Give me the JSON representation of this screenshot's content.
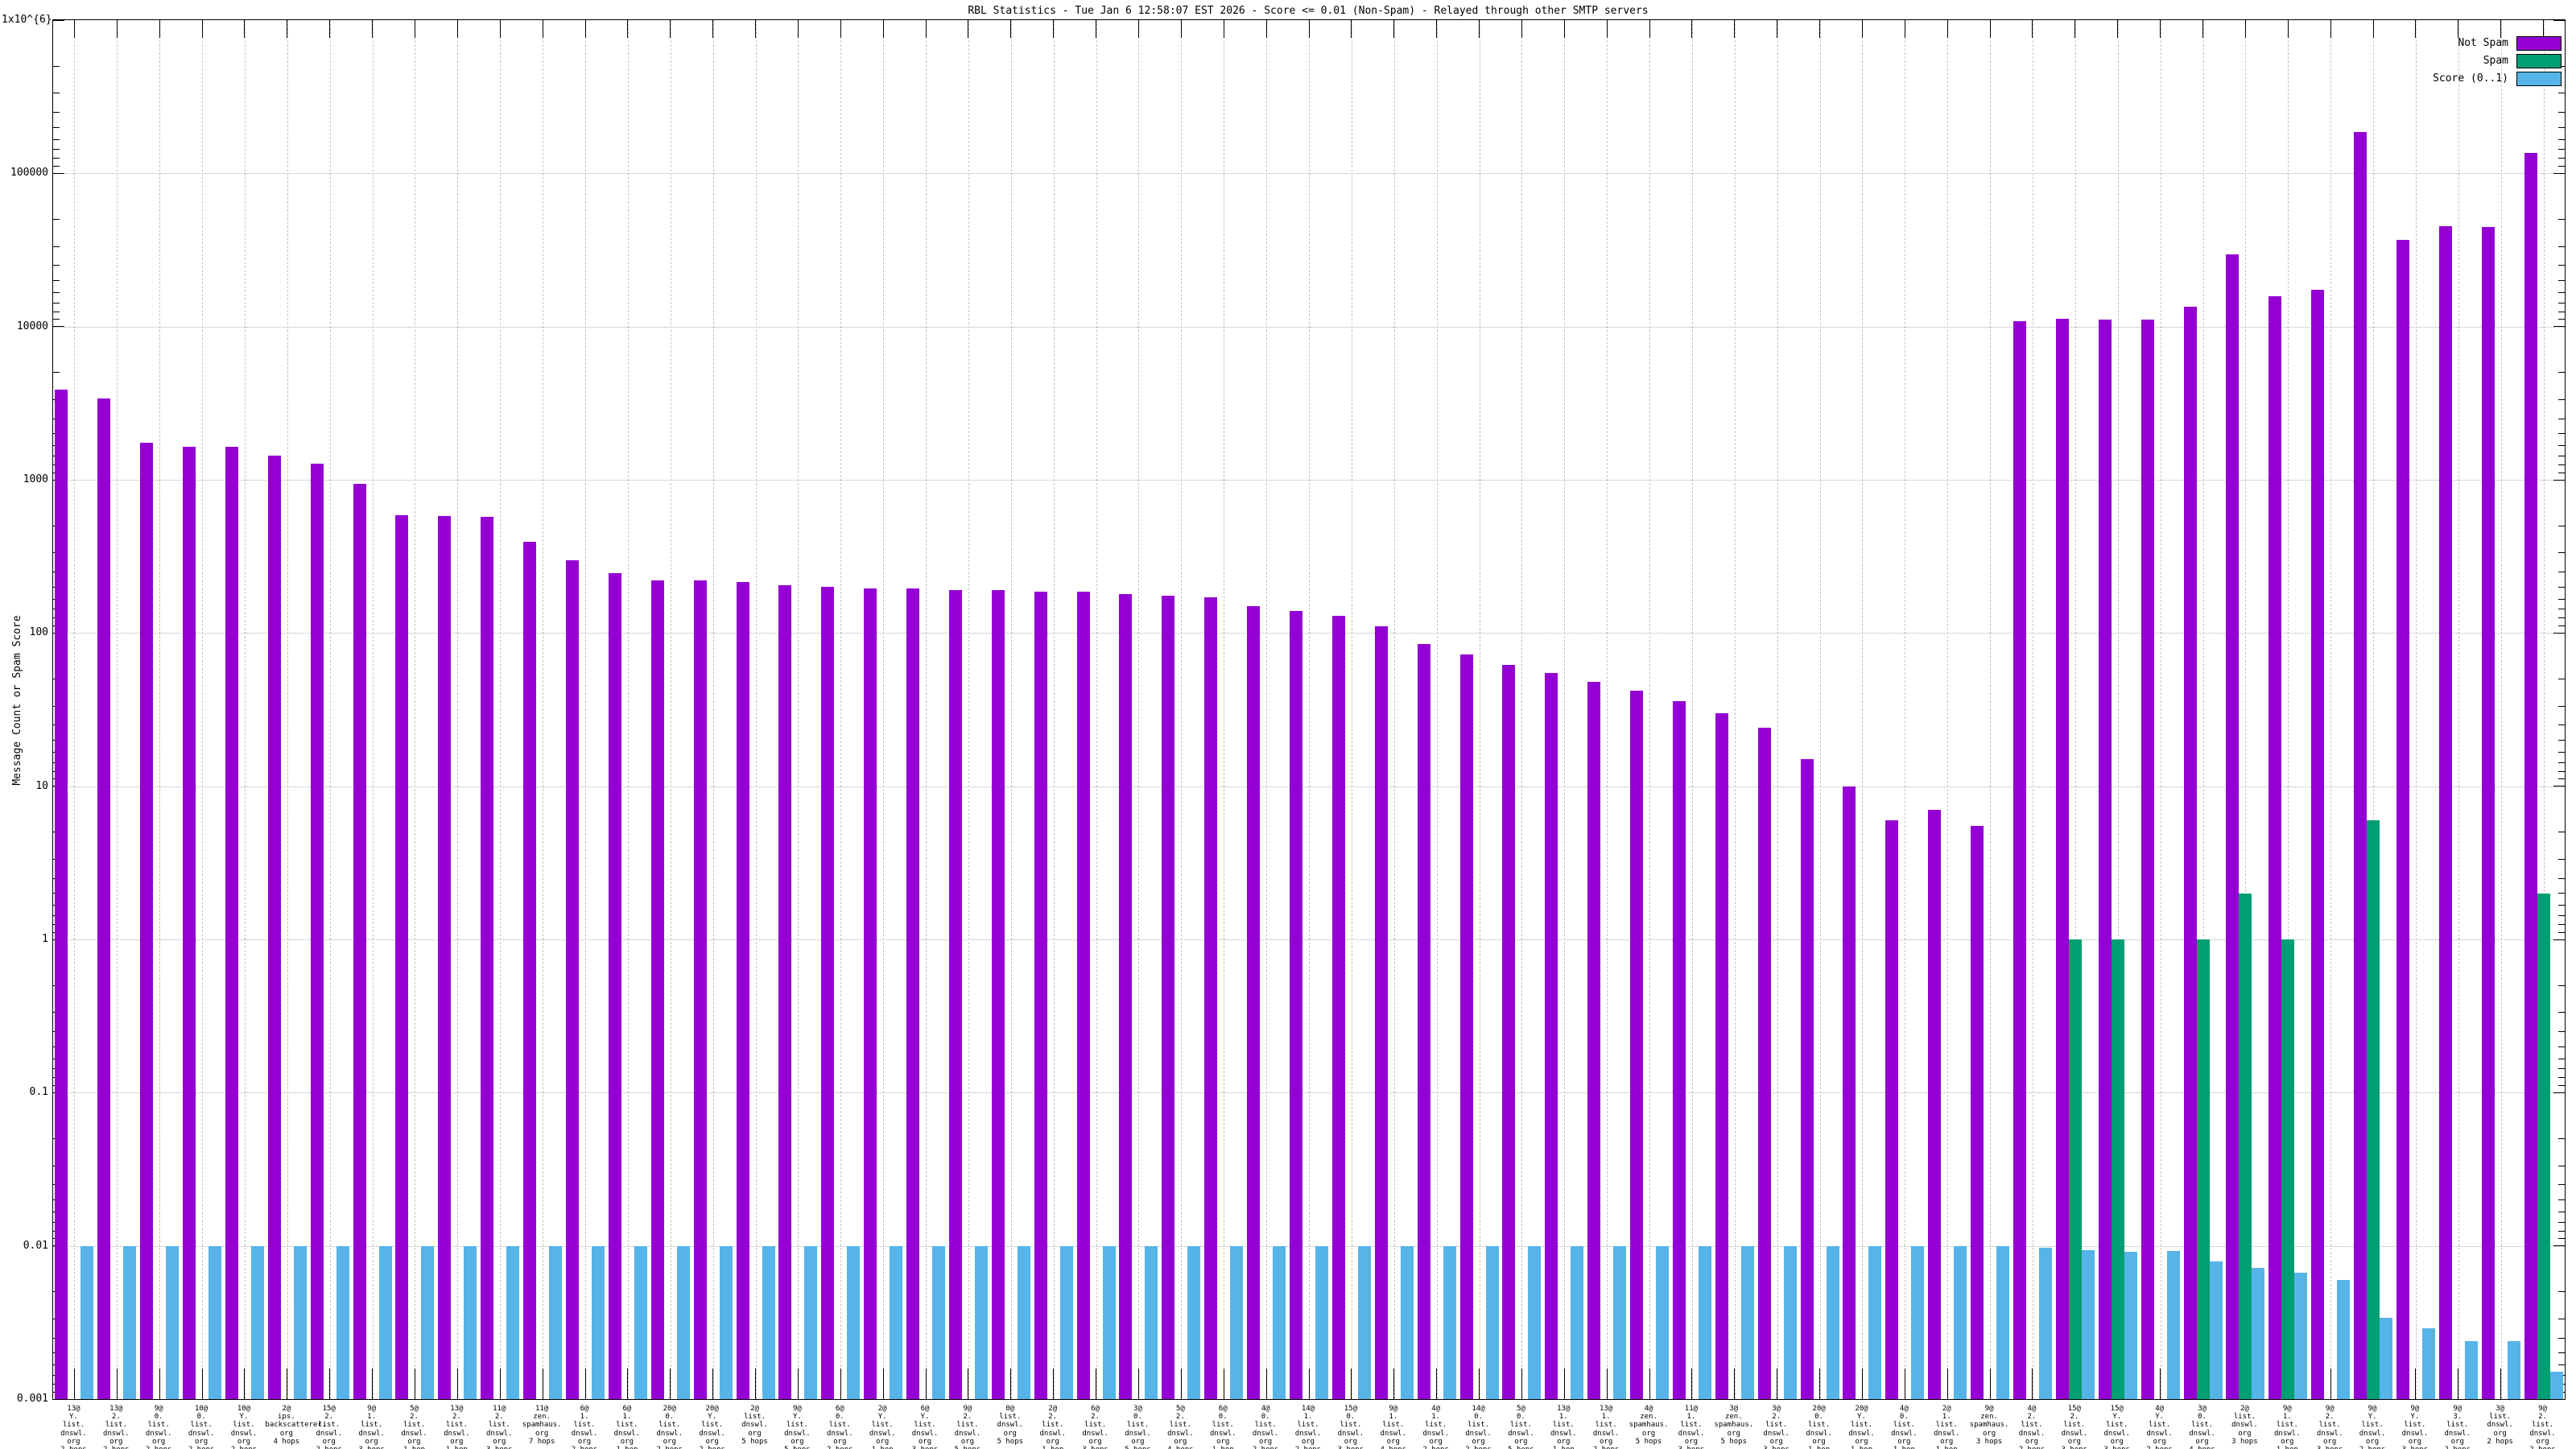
{
  "title": "RBL Statistics - Tue Jan  6 12:58:07 EST 2026 - Score <= 0.01 (Non-Spam) - Relayed through other SMTP servers",
  "legend": [
    {
      "label": "Not Spam",
      "color": "#9400d3"
    },
    {
      "label": "Spam",
      "color": "#009e73"
    },
    {
      "label": "Score (0..1)",
      "color": "#56b4e9"
    }
  ],
  "y_axis": {
    "title": "Message Count or Spam Score",
    "tick_labels": [
      "1x10^{6}",
      "100000",
      "10000",
      "1000",
      "100",
      "10",
      "1",
      "0.1",
      "0.01",
      "0.001"
    ],
    "tick_values": [
      1000000,
      100000,
      10000,
      1000,
      100,
      10,
      1,
      0.1,
      0.01,
      0.001
    ]
  },
  "chart_data": {
    "type": "bar",
    "scale": "log-y",
    "ylim": [
      0.001,
      1000000
    ],
    "grid": true,
    "legend_position": "top-right",
    "series_names": [
      "Not Spam",
      "Spam",
      "Score (0..1)"
    ],
    "bars": [
      {
        "label_lines": [
          "13@",
          "Y.",
          "list.",
          "dnswl.",
          "org",
          "2 hops"
        ],
        "not_spam": 3900,
        "spam": 0,
        "score": 0.01
      },
      {
        "label_lines": [
          "13@",
          "2.",
          "list.",
          "dnswl.",
          "org",
          "2 hops"
        ],
        "not_spam": 3400,
        "spam": 0,
        "score": 0.01
      },
      {
        "label_lines": [
          "9@",
          "0.",
          "list.",
          "dnswl.",
          "org",
          "2 hops"
        ],
        "not_spam": 1750,
        "spam": 0,
        "score": 0.01
      },
      {
        "label_lines": [
          "10@",
          "0.",
          "list.",
          "dnswl.",
          "org",
          "2 hops"
        ],
        "not_spam": 1640,
        "spam": 0,
        "score": 0.01
      },
      {
        "label_lines": [
          "10@",
          "Y.",
          "list.",
          "dnswl.",
          "org",
          "2 hops"
        ],
        "not_spam": 1640,
        "spam": 0,
        "score": 0.01
      },
      {
        "label_lines": [
          "2@",
          "ips.",
          "backscatterer.",
          "org",
          "4 hops"
        ],
        "not_spam": 1440,
        "spam": 0,
        "score": 0.01
      },
      {
        "label_lines": [
          "15@",
          "2.",
          "list.",
          "dnswl.",
          "org",
          "2 hops"
        ],
        "not_spam": 1280,
        "spam": 0,
        "score": 0.01
      },
      {
        "label_lines": [
          "9@",
          "1.",
          "list.",
          "dnswl.",
          "org",
          "3 hops"
        ],
        "not_spam": 945,
        "spam": 0,
        "score": 0.01
      },
      {
        "label_lines": [
          "5@",
          "2.",
          "list.",
          "dnswl.",
          "org",
          "1 hop"
        ],
        "not_spam": 590,
        "spam": 0,
        "score": 0.01
      },
      {
        "label_lines": [
          "13@",
          "2.",
          "list.",
          "dnswl.",
          "org",
          "1 hop"
        ],
        "not_spam": 580,
        "spam": 0,
        "score": 0.01
      },
      {
        "label_lines": [
          "11@",
          "2.",
          "list.",
          "dnswl.",
          "org",
          "3 hops"
        ],
        "not_spam": 570,
        "spam": 0,
        "score": 0.01
      },
      {
        "label_lines": [
          "11@",
          "zen.",
          "spamhaus.",
          "org",
          "7 hops"
        ],
        "not_spam": 395,
        "spam": 0,
        "score": 0.01
      },
      {
        "label_lines": [
          "6@",
          "1.",
          "list.",
          "dnswl.",
          "org",
          "2 hops"
        ],
        "not_spam": 300,
        "spam": 0,
        "score": 0.01
      },
      {
        "label_lines": [
          "6@",
          "1.",
          "list.",
          "dnswl.",
          "org",
          "1 hop"
        ],
        "not_spam": 245,
        "spam": 0,
        "score": 0.01
      },
      {
        "label_lines": [
          "20@",
          "0.",
          "list.",
          "dnswl.",
          "org",
          "2 hops"
        ],
        "not_spam": 220,
        "spam": 0,
        "score": 0.01
      },
      {
        "label_lines": [
          "20@",
          "Y.",
          "list.",
          "dnswl.",
          "org",
          "2 hops"
        ],
        "not_spam": 220,
        "spam": 0,
        "score": 0.01
      },
      {
        "label_lines": [
          "2@",
          "list.",
          "dnswl.",
          "org",
          "5 hops"
        ],
        "not_spam": 215,
        "spam": 0,
        "score": 0.01
      },
      {
        "label_lines": [
          "9@",
          "Y.",
          "list.",
          "dnswl.",
          "org",
          "5 hops"
        ],
        "not_spam": 205,
        "spam": 0,
        "score": 0.01
      },
      {
        "label_lines": [
          "6@",
          "0.",
          "list.",
          "dnswl.",
          "org",
          "2 hops"
        ],
        "not_spam": 200,
        "spam": 0,
        "score": 0.01
      },
      {
        "label_lines": [
          "2@",
          "Y.",
          "list.",
          "dnswl.",
          "org",
          "1 hop"
        ],
        "not_spam": 195,
        "spam": 0,
        "score": 0.01
      },
      {
        "label_lines": [
          "6@",
          "Y.",
          "list.",
          "dnswl.",
          "org",
          "3 hops"
        ],
        "not_spam": 195,
        "spam": 0,
        "score": 0.01
      },
      {
        "label_lines": [
          "9@",
          "2.",
          "list.",
          "dnswl.",
          "org",
          "5 hops"
        ],
        "not_spam": 190,
        "spam": 0,
        "score": 0.01
      },
      {
        "label_lines": [
          "0@",
          "list.",
          "dnswl.",
          "org",
          "5 hops"
        ],
        "not_spam": 190,
        "spam": 0,
        "score": 0.01
      },
      {
        "label_lines": [
          "2@",
          "2.",
          "list.",
          "dnswl.",
          "org",
          "1 hop"
        ],
        "not_spam": 185,
        "spam": 0,
        "score": 0.01
      },
      {
        "label_lines": [
          "6@",
          "2.",
          "list.",
          "dnswl.",
          "org",
          "3 hops"
        ],
        "not_spam": 185,
        "spam": 0,
        "score": 0.01
      },
      {
        "label_lines": [
          "3@",
          "0.",
          "list.",
          "dnswl.",
          "org",
          "5 hops"
        ],
        "not_spam": 180,
        "spam": 0,
        "score": 0.01
      },
      {
        "label_lines": [
          "5@",
          "2.",
          "list.",
          "dnswl.",
          "org",
          "4 hops"
        ],
        "not_spam": 175,
        "spam": 0,
        "score": 0.01
      },
      {
        "label_lines": [
          "6@",
          "0.",
          "list.",
          "dnswl.",
          "org",
          "1 hop"
        ],
        "not_spam": 170,
        "spam": 0,
        "score": 0.01
      },
      {
        "label_lines": [
          "4@",
          "0.",
          "list.",
          "dnswl.",
          "org",
          "2 hops"
        ],
        "not_spam": 150,
        "spam": 0,
        "score": 0.01
      },
      {
        "label_lines": [
          "14@",
          "1.",
          "list.",
          "dnswl.",
          "org",
          "2 hops"
        ],
        "not_spam": 140,
        "spam": 0,
        "score": 0.01
      },
      {
        "label_lines": [
          "15@",
          "0.",
          "list.",
          "dnswl.",
          "org",
          "3 hops"
        ],
        "not_spam": 130,
        "spam": 0,
        "score": 0.01
      },
      {
        "label_lines": [
          "9@",
          "1.",
          "list.",
          "dnswl.",
          "org",
          "4 hops"
        ],
        "not_spam": 110,
        "spam": 0,
        "score": 0.01
      },
      {
        "label_lines": [
          "4@",
          "1.",
          "list.",
          "dnswl.",
          "org",
          "2 hops"
        ],
        "not_spam": 85,
        "spam": 0,
        "score": 0.01
      },
      {
        "label_lines": [
          "14@",
          "0.",
          "list.",
          "dnswl.",
          "org",
          "2 hops"
        ],
        "not_spam": 72,
        "spam": 0,
        "score": 0.01
      },
      {
        "label_lines": [
          "5@",
          "0.",
          "list.",
          "dnswl.",
          "org",
          "5 hops"
        ],
        "not_spam": 62,
        "spam": 0,
        "score": 0.01
      },
      {
        "label_lines": [
          "13@",
          "1.",
          "list.",
          "dnswl.",
          "org",
          "1 hop"
        ],
        "not_spam": 55,
        "spam": 0,
        "score": 0.01
      },
      {
        "label_lines": [
          "13@",
          "1.",
          "list.",
          "dnswl.",
          "org",
          "2 hops"
        ],
        "not_spam": 48,
        "spam": 0,
        "score": 0.01
      },
      {
        "label_lines": [
          "4@",
          "zen.",
          "spamhaus.",
          "org",
          "5 hops"
        ],
        "not_spam": 42,
        "spam": 0,
        "score": 0.01
      },
      {
        "label_lines": [
          "11@",
          "1.",
          "list.",
          "dnswl.",
          "org",
          "3 hops"
        ],
        "not_spam": 36,
        "spam": 0,
        "score": 0.01
      },
      {
        "label_lines": [
          "3@",
          "zen.",
          "spamhaus.",
          "org",
          "5 hops"
        ],
        "not_spam": 30,
        "spam": 0,
        "score": 0.01
      },
      {
        "label_lines": [
          "3@",
          "2.",
          "list.",
          "dnswl.",
          "org",
          "3 hops"
        ],
        "not_spam": 24,
        "spam": 0,
        "score": 0.01
      },
      {
        "label_lines": [
          "20@",
          "0.",
          "list.",
          "dnswl.",
          "org",
          "1 hop"
        ],
        "not_spam": 15,
        "spam": 0,
        "score": 0.01
      },
      {
        "label_lines": [
          "20@",
          "Y.",
          "list.",
          "dnswl.",
          "org",
          "1 hop"
        ],
        "not_spam": 10,
        "spam": 0,
        "score": 0.01
      },
      {
        "label_lines": [
          "4@",
          "0.",
          "list.",
          "dnswl.",
          "org",
          "1 hop"
        ],
        "not_spam": 6,
        "spam": 0,
        "score": 0.01
      },
      {
        "label_lines": [
          "2@",
          "1.",
          "list.",
          "dnswl.",
          "org",
          "1 hop"
        ],
        "not_spam": 7,
        "spam": 0,
        "score": 0.01
      },
      {
        "label_lines": [
          "9@",
          "zen.",
          "spamhaus.",
          "org",
          "3 hops"
        ],
        "not_spam": 5.5,
        "spam": 0,
        "score": 0.01
      },
      {
        "label_lines": [
          "4@",
          "2.",
          "list.",
          "dnswl.",
          "org",
          "2 hops"
        ],
        "not_spam": 10900,
        "spam": 0,
        "score": 0.0097
      },
      {
        "label_lines": [
          "15@",
          "2.",
          "list.",
          "dnswl.",
          "org",
          "3 hops"
        ],
        "not_spam": 11200,
        "spam": 1,
        "score": 0.0094
      },
      {
        "label_lines": [
          "15@",
          "Y.",
          "list.",
          "dnswl.",
          "org",
          "3 hops"
        ],
        "not_spam": 11100,
        "spam": 1,
        "score": 0.0092
      },
      {
        "label_lines": [
          "4@",
          "Y.",
          "list.",
          "dnswl.",
          "org",
          "2 hops"
        ],
        "not_spam": 11100,
        "spam": 0,
        "score": 0.0093
      },
      {
        "label_lines": [
          "3@",
          "0.",
          "list.",
          "dnswl.",
          "org",
          "4 hops"
        ],
        "not_spam": 13500,
        "spam": 1,
        "score": 0.0079
      },
      {
        "label_lines": [
          "2@",
          "list.",
          "dnswl.",
          "org",
          "3 hops"
        ],
        "not_spam": 29500,
        "spam": 2,
        "score": 0.0072
      },
      {
        "label_lines": [
          "9@",
          "1.",
          "list.",
          "dnswl.",
          "org",
          "1 hop"
        ],
        "not_spam": 15800,
        "spam": 1,
        "score": 0.0067
      },
      {
        "label_lines": [
          "9@",
          "2.",
          "list.",
          "dnswl.",
          "org",
          "3 hops"
        ],
        "not_spam": 17400,
        "spam": 0,
        "score": 0.006
      },
      {
        "label_lines": [
          "9@",
          "Y.",
          "list.",
          "dnswl.",
          "org",
          "2 hops"
        ],
        "not_spam": 186000,
        "spam": 6,
        "score": 0.0034
      },
      {
        "label_lines": [
          "9@",
          "Y.",
          "list.",
          "dnswl.",
          "org",
          "3 hops"
        ],
        "not_spam": 36700,
        "spam": 0,
        "score": 0.0029
      },
      {
        "label_lines": [
          "9@",
          "3.",
          "list.",
          "dnswl.",
          "org",
          "2 hops"
        ],
        "not_spam": 45000,
        "spam": 0,
        "score": 0.0024
      },
      {
        "label_lines": [
          "3@",
          "list.",
          "dnswl.",
          "org",
          "2 hops"
        ],
        "not_spam": 44700,
        "spam": 0,
        "score": 0.0024
      },
      {
        "label_lines": [
          "9@",
          "2.",
          "list.",
          "dnswl.",
          "org",
          "2 hops"
        ],
        "not_spam": 136000,
        "spam": 2,
        "score": 0.0015
      }
    ]
  }
}
